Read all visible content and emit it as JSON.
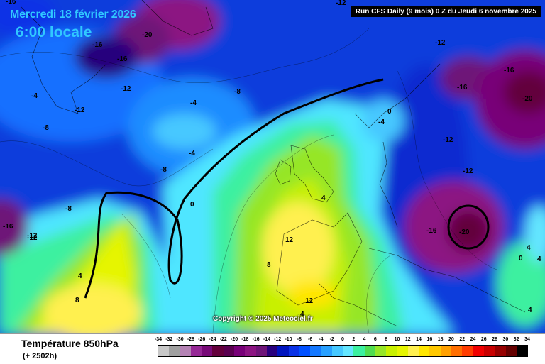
{
  "header": {
    "date": "Mercredi 18 février 2026",
    "time": "6:00 locale",
    "run_info": "Run CFS Daily (9 mois) 0 Z du Jeudi 6 novembre 2025"
  },
  "copyright": "Copyright © 2025 Meteociel.fr",
  "footer": {
    "parameter": "Température 850hPa",
    "echeance": "(+ 2502h)"
  },
  "legend": {
    "values": [
      "-34",
      "-32",
      "-30",
      "-28",
      "-26",
      "-24",
      "-22",
      "-20",
      "-18",
      "-16",
      "-14",
      "-12",
      "-10",
      "-8",
      "-6",
      "-4",
      "-2",
      "0",
      "2",
      "4",
      "6",
      "8",
      "10",
      "12",
      "14",
      "16",
      "18",
      "20",
      "22",
      "24",
      "26",
      "28",
      "30",
      "32",
      "34"
    ],
    "colors": [
      "#c8c8c8",
      "#a0a0a0",
      "#b482b4",
      "#962896",
      "#780a78",
      "#64003c",
      "#5a0050",
      "#780078",
      "#8c1482",
      "#6e1478",
      "#28007d",
      "#0014be",
      "#0a32e6",
      "#0050ff",
      "#1478ff",
      "#28a0ff",
      "#46c8ff",
      "#64e6ff",
      "#3cf0a0",
      "#50dc50",
      "#96e628",
      "#c8f000",
      "#e6f500",
      "#fff050",
      "#ffe600",
      "#ffc800",
      "#ffa000",
      "#ff6e00",
      "#ff3c00",
      "#f00000",
      "#c80000",
      "#960000",
      "#640000",
      "#000000"
    ]
  },
  "contour_labels": [
    {
      "text": "-16"
    },
    {
      "text": "-20"
    },
    {
      "text": "-16"
    },
    {
      "text": "-16"
    },
    {
      "text": "-12"
    },
    {
      "text": "-12"
    },
    {
      "text": "-8"
    },
    {
      "text": "-4"
    },
    {
      "text": "-8"
    },
    {
      "text": "-4"
    },
    {
      "text": "-8"
    },
    {
      "text": "0"
    },
    {
      "text": "-8"
    },
    {
      "text": "-16"
    },
    {
      "text": "-12"
    },
    {
      "text": "4"
    },
    {
      "text": "8"
    },
    {
      "text": "12"
    },
    {
      "text": "8"
    },
    {
      "text": "12"
    },
    {
      "text": "4"
    },
    {
      "text": "4"
    },
    {
      "text": "0"
    },
    {
      "text": "-4"
    },
    {
      "text": "-12"
    },
    {
      "text": "-12"
    },
    {
      "text": "-16"
    },
    {
      "text": "-12"
    },
    {
      "text": "-12"
    },
    {
      "text": "-16"
    },
    {
      "text": "-20"
    },
    {
      "text": "-16"
    },
    {
      "text": "-20"
    },
    {
      "text": "4"
    },
    {
      "text": "4"
    },
    {
      "text": "0"
    },
    {
      "text": "-12"
    },
    {
      "text": "-4"
    },
    {
      "text": "4"
    }
  ]
}
